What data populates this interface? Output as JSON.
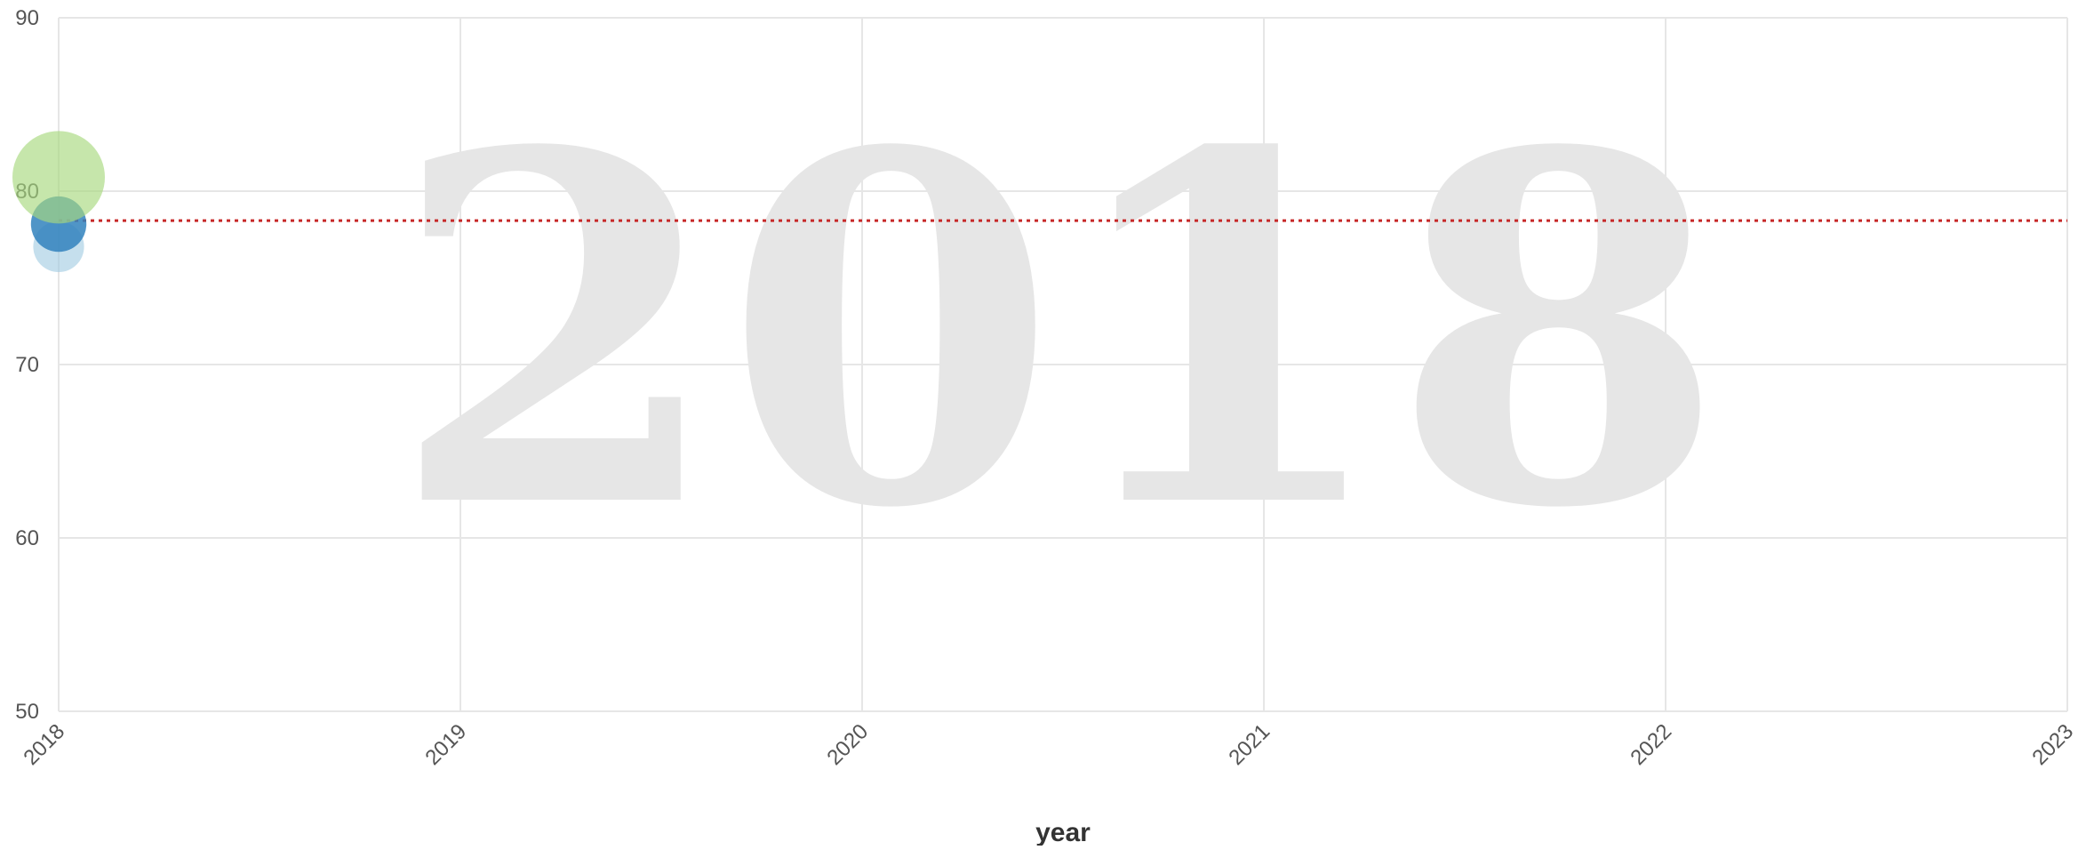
{
  "chart_data": {
    "type": "scatter",
    "title": "",
    "watermark": "2018",
    "xlabel": "year",
    "ylabel": "",
    "xlim": [
      2018,
      2023
    ],
    "ylim": [
      50,
      90
    ],
    "x_ticks": [
      "2018",
      "2019",
      "2020",
      "2021",
      "2022",
      "2023"
    ],
    "y_ticks": [
      "50",
      "60",
      "70",
      "80",
      "90"
    ],
    "grid": true,
    "reference_line": {
      "y": 78.3,
      "style": "dotted",
      "color": "#c62828"
    },
    "points": [
      {
        "x": 2018,
        "y": 76.8,
        "size": 0.55,
        "color": "#9ecae1",
        "opacity": 0.6
      },
      {
        "x": 2018,
        "y": 78.1,
        "size": 0.6,
        "color": "#3182bd",
        "opacity": 0.85
      },
      {
        "x": 2018,
        "y": 80.8,
        "size": 1.0,
        "color": "#a8d87e",
        "opacity": 0.65
      }
    ]
  }
}
